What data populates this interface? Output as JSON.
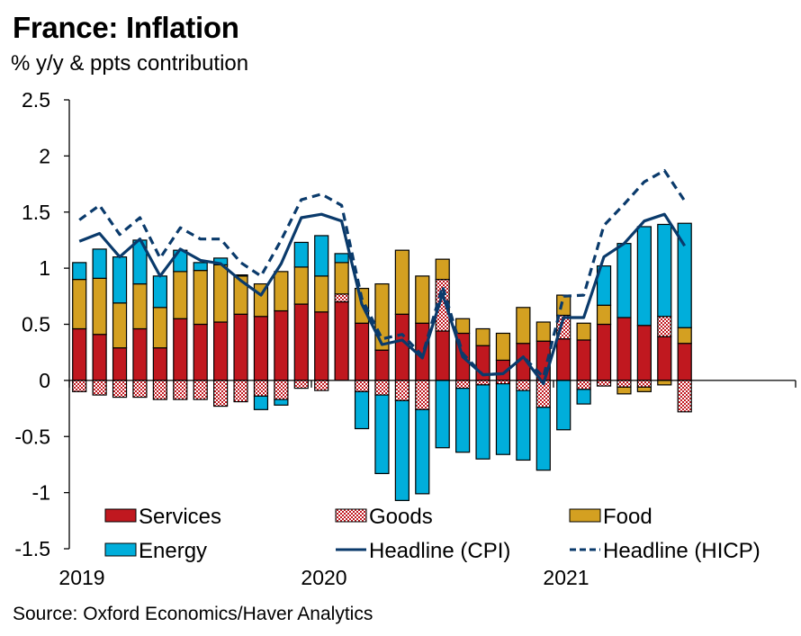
{
  "title": "France: Inflation",
  "subtitle": "% y/y & ppts contribution",
  "source": "Source: Oxford Economics/Haver Analytics",
  "colors": {
    "services": "#C0181F",
    "goods": "#C0181F",
    "food": "#D4A021",
    "energy": "#00AEDB",
    "line": "#0A3A6B"
  },
  "chart_data": {
    "type": "bar",
    "stacked": true,
    "title": "France: Inflation",
    "ylabel": "% y/y & ppts contribution",
    "xlabel": "",
    "ylim": [
      -1.5,
      2.5
    ],
    "yticks": [
      "2.5",
      "2",
      "1.5",
      "1",
      "0.5",
      "0",
      "-0.5",
      "-1",
      "-1.5"
    ],
    "ytick_values": [
      2.5,
      2,
      1.5,
      1,
      0.5,
      0,
      -0.5,
      -1,
      -1.5
    ],
    "xtick_labels": [
      "2019",
      "2020",
      "2021"
    ],
    "xtick_month_index": [
      0,
      12,
      24
    ],
    "grid": false,
    "legend_position": "bottom-inside",
    "categories": [
      "Jan 2019",
      "Feb 2019",
      "Mar 2019",
      "Apr 2019",
      "May 2019",
      "Jun 2019",
      "Jul 2019",
      "Aug 2019",
      "Sep 2019",
      "Oct 2019",
      "Nov 2019",
      "Dec 2019",
      "Jan 2020",
      "Feb 2020",
      "Mar 2020",
      "Apr 2020",
      "May 2020",
      "Jun 2020",
      "Jul 2020",
      "Aug 2020",
      "Sep 2020",
      "Oct 2020",
      "Nov 2020",
      "Dec 2020",
      "Jan 2021",
      "Feb 2021",
      "Mar 2021",
      "Apr 2021",
      "May 2021",
      "Jun 2021",
      "Jul 2021"
    ],
    "series": [
      {
        "name": "Services",
        "kind": "bar",
        "values": [
          0.46,
          0.41,
          0.29,
          0.46,
          0.29,
          0.55,
          0.5,
          0.52,
          0.59,
          0.57,
          0.62,
          0.68,
          0.61,
          0.7,
          0.51,
          0.27,
          0.59,
          0.51,
          0.44,
          0.42,
          0.31,
          0.18,
          0.33,
          0.35,
          0.37,
          0.36,
          0.5,
          0.56,
          0.49,
          0.39,
          0.33
        ]
      },
      {
        "name": "Goods",
        "kind": "bar",
        "values": [
          -0.1,
          -0.13,
          -0.15,
          -0.15,
          -0.17,
          -0.17,
          -0.17,
          -0.23,
          -0.19,
          -0.14,
          -0.17,
          -0.07,
          -0.09,
          0.07,
          -0.1,
          -0.13,
          -0.18,
          -0.26,
          0.46,
          -0.07,
          -0.04,
          -0.03,
          -0.09,
          -0.24,
          0.21,
          -0.08,
          -0.05,
          -0.06,
          -0.06,
          0.18,
          -0.28
        ]
      },
      {
        "name": "Food",
        "kind": "bar",
        "values": [
          0.44,
          0.5,
          0.4,
          0.4,
          0.36,
          0.42,
          0.48,
          0.51,
          0.34,
          0.29,
          0.35,
          0.33,
          0.32,
          0.28,
          0.31,
          0.59,
          0.57,
          0.42,
          0.18,
          0.13,
          0.15,
          0.24,
          0.32,
          0.17,
          0.18,
          0.15,
          0.17,
          -0.06,
          -0.04,
          -0.04,
          0.14
        ]
      },
      {
        "name": "Energy",
        "kind": "bar",
        "values": [
          0.15,
          0.26,
          0.41,
          0.39,
          0.28,
          0.19,
          0.07,
          0.06,
          0.01,
          -0.12,
          -0.05,
          0.22,
          0.36,
          0.08,
          -0.33,
          -0.7,
          -0.89,
          -0.75,
          -0.6,
          -0.57,
          -0.66,
          -0.63,
          -0.62,
          -0.56,
          -0.44,
          -0.13,
          0.35,
          0.66,
          0.88,
          0.82,
          0.93
        ]
      },
      {
        "name": "Headline (CPI)",
        "kind": "line",
        "dash": false,
        "values": [
          1.24,
          1.31,
          1.1,
          1.26,
          0.93,
          1.17,
          1.07,
          1.04,
          0.89,
          0.76,
          1.04,
          1.45,
          1.48,
          1.42,
          0.68,
          0.32,
          0.36,
          0.2,
          0.77,
          0.21,
          0.05,
          0.06,
          0.21,
          -0.03,
          0.56,
          0.56,
          1.1,
          1.22,
          1.42,
          1.48,
          1.2
        ]
      },
      {
        "name": "Headline (HICP)",
        "kind": "line",
        "dash": true,
        "values": [
          1.43,
          1.56,
          1.3,
          1.45,
          1.09,
          1.36,
          1.26,
          1.26,
          1.05,
          0.93,
          1.25,
          1.61,
          1.66,
          1.56,
          0.73,
          0.37,
          0.41,
          0.22,
          0.84,
          0.24,
          0.05,
          0.06,
          0.21,
          0.03,
          0.75,
          0.76,
          1.38,
          1.57,
          1.77,
          1.87,
          1.6
        ]
      }
    ]
  },
  "legend": [
    {
      "label": "Services",
      "type": "swatch",
      "key": "services"
    },
    {
      "label": "Goods",
      "type": "pattern",
      "key": "goods"
    },
    {
      "label": "Food",
      "type": "swatch",
      "key": "food"
    },
    {
      "label": "Energy",
      "type": "swatch",
      "key": "energy"
    },
    {
      "label": "Headline (CPI)",
      "type": "line",
      "key": "line"
    },
    {
      "label": "Headline (HICP)",
      "type": "dash",
      "key": "line"
    }
  ]
}
